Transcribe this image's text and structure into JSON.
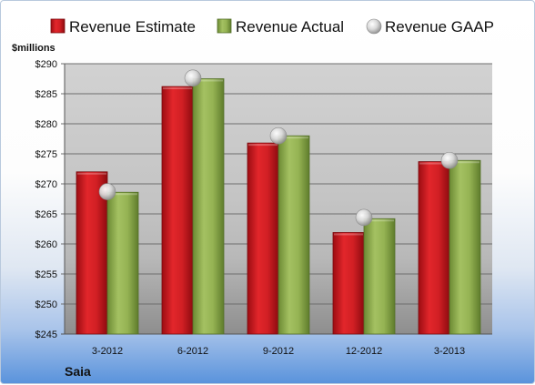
{
  "chart_data": {
    "type": "bar",
    "categories": [
      "3-2012",
      "6-2012",
      "9-2012",
      "12-2012",
      "3-2013"
    ],
    "series": [
      {
        "name": "Revenue Estimate",
        "kind": "bar",
        "color": "#cc1f23",
        "values": [
          272.0,
          286.2,
          276.8,
          261.9,
          273.7
        ]
      },
      {
        "name": "Revenue Actual",
        "kind": "bar",
        "color": "#8fae4f",
        "values": [
          268.6,
          287.5,
          278.0,
          264.2,
          273.9
        ]
      },
      {
        "name": "Revenue GAAP",
        "kind": "marker",
        "color": "#c9c9c9",
        "values": [
          268.7,
          287.6,
          278.0,
          264.4,
          273.9
        ]
      }
    ],
    "ylabel": "$millions",
    "ylim": [
      245,
      290
    ],
    "yticks": [
      "$245",
      "$250",
      "$255",
      "$260",
      "$265",
      "$270",
      "$275",
      "$280",
      "$285",
      "$290"
    ],
    "grid": true,
    "legend_position": "top",
    "company": "Saia"
  }
}
